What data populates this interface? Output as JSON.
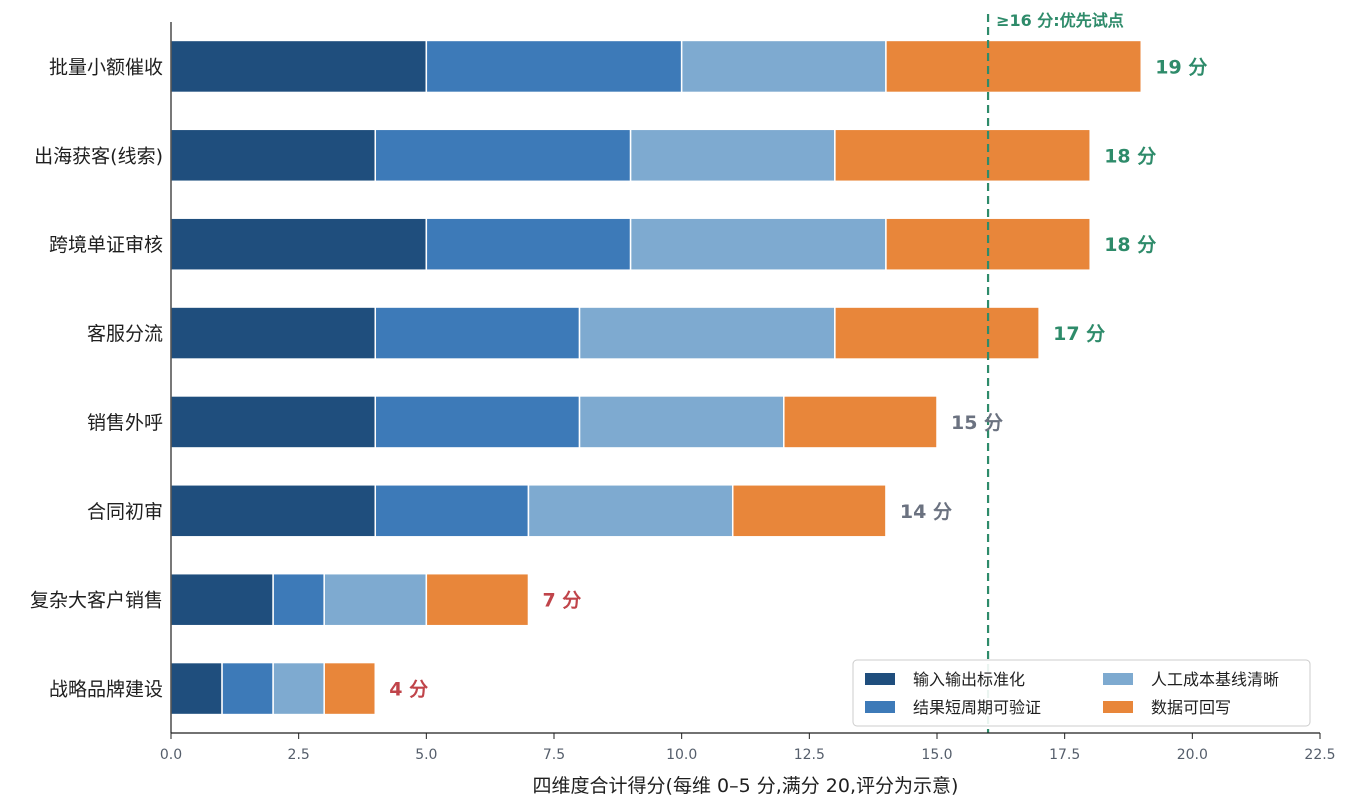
{
  "chart_data": {
    "type": "bar",
    "orientation": "horizontal",
    "stacked": true,
    "categories": [
      "批量小额催收",
      "出海获客(线索)",
      "跨境单证审核",
      "客服分流",
      "销售外呼",
      "合同初审",
      "复杂大客户销售",
      "战略品牌建设"
    ],
    "series": [
      {
        "name": "输入输出标准化",
        "color": "#1f4e7d",
        "values": [
          5,
          4,
          5,
          4,
          4,
          4,
          2,
          1
        ]
      },
      {
        "name": "结果短周期可验证",
        "color": "#3d7ab8",
        "values": [
          5,
          5,
          4,
          4,
          4,
          3,
          1,
          1
        ]
      },
      {
        "name": "人工成本基线清晰",
        "color": "#7eaad0",
        "values": [
          4,
          4,
          5,
          5,
          4,
          4,
          2,
          1
        ]
      },
      {
        "name": "数据可回写",
        "color": "#e8863a",
        "values": [
          5,
          5,
          4,
          4,
          3,
          3,
          2,
          1
        ]
      }
    ],
    "totals": [
      "19 分",
      "18 分",
      "18 分",
      "17 分",
      "15 分",
      "14 分",
      "7 分",
      "4 分"
    ],
    "total_colors": [
      "#2e8b6a",
      "#2e8b6a",
      "#2e8b6a",
      "#2e8b6a",
      "#6b7280",
      "#6b7280",
      "#c0444a",
      "#c0444a"
    ],
    "threshold": {
      "value": 16,
      "label": "≥16 分:优先试点",
      "color": "#2e8b6a"
    },
    "xlim": [
      0,
      22.5
    ],
    "xticks": [
      0,
      2.5,
      5,
      7.5,
      10,
      12.5,
      15,
      17.5,
      20,
      22.5
    ],
    "xtick_labels": [
      "0.0",
      "2.5",
      "5.0",
      "7.5",
      "10.0",
      "12.5",
      "15.0",
      "17.5",
      "20.0",
      "22.5"
    ],
    "xlabel": "四维度合计得分(每维 0–5 分,满分 20,评分为示意)",
    "legend_position": "bottom-right"
  }
}
